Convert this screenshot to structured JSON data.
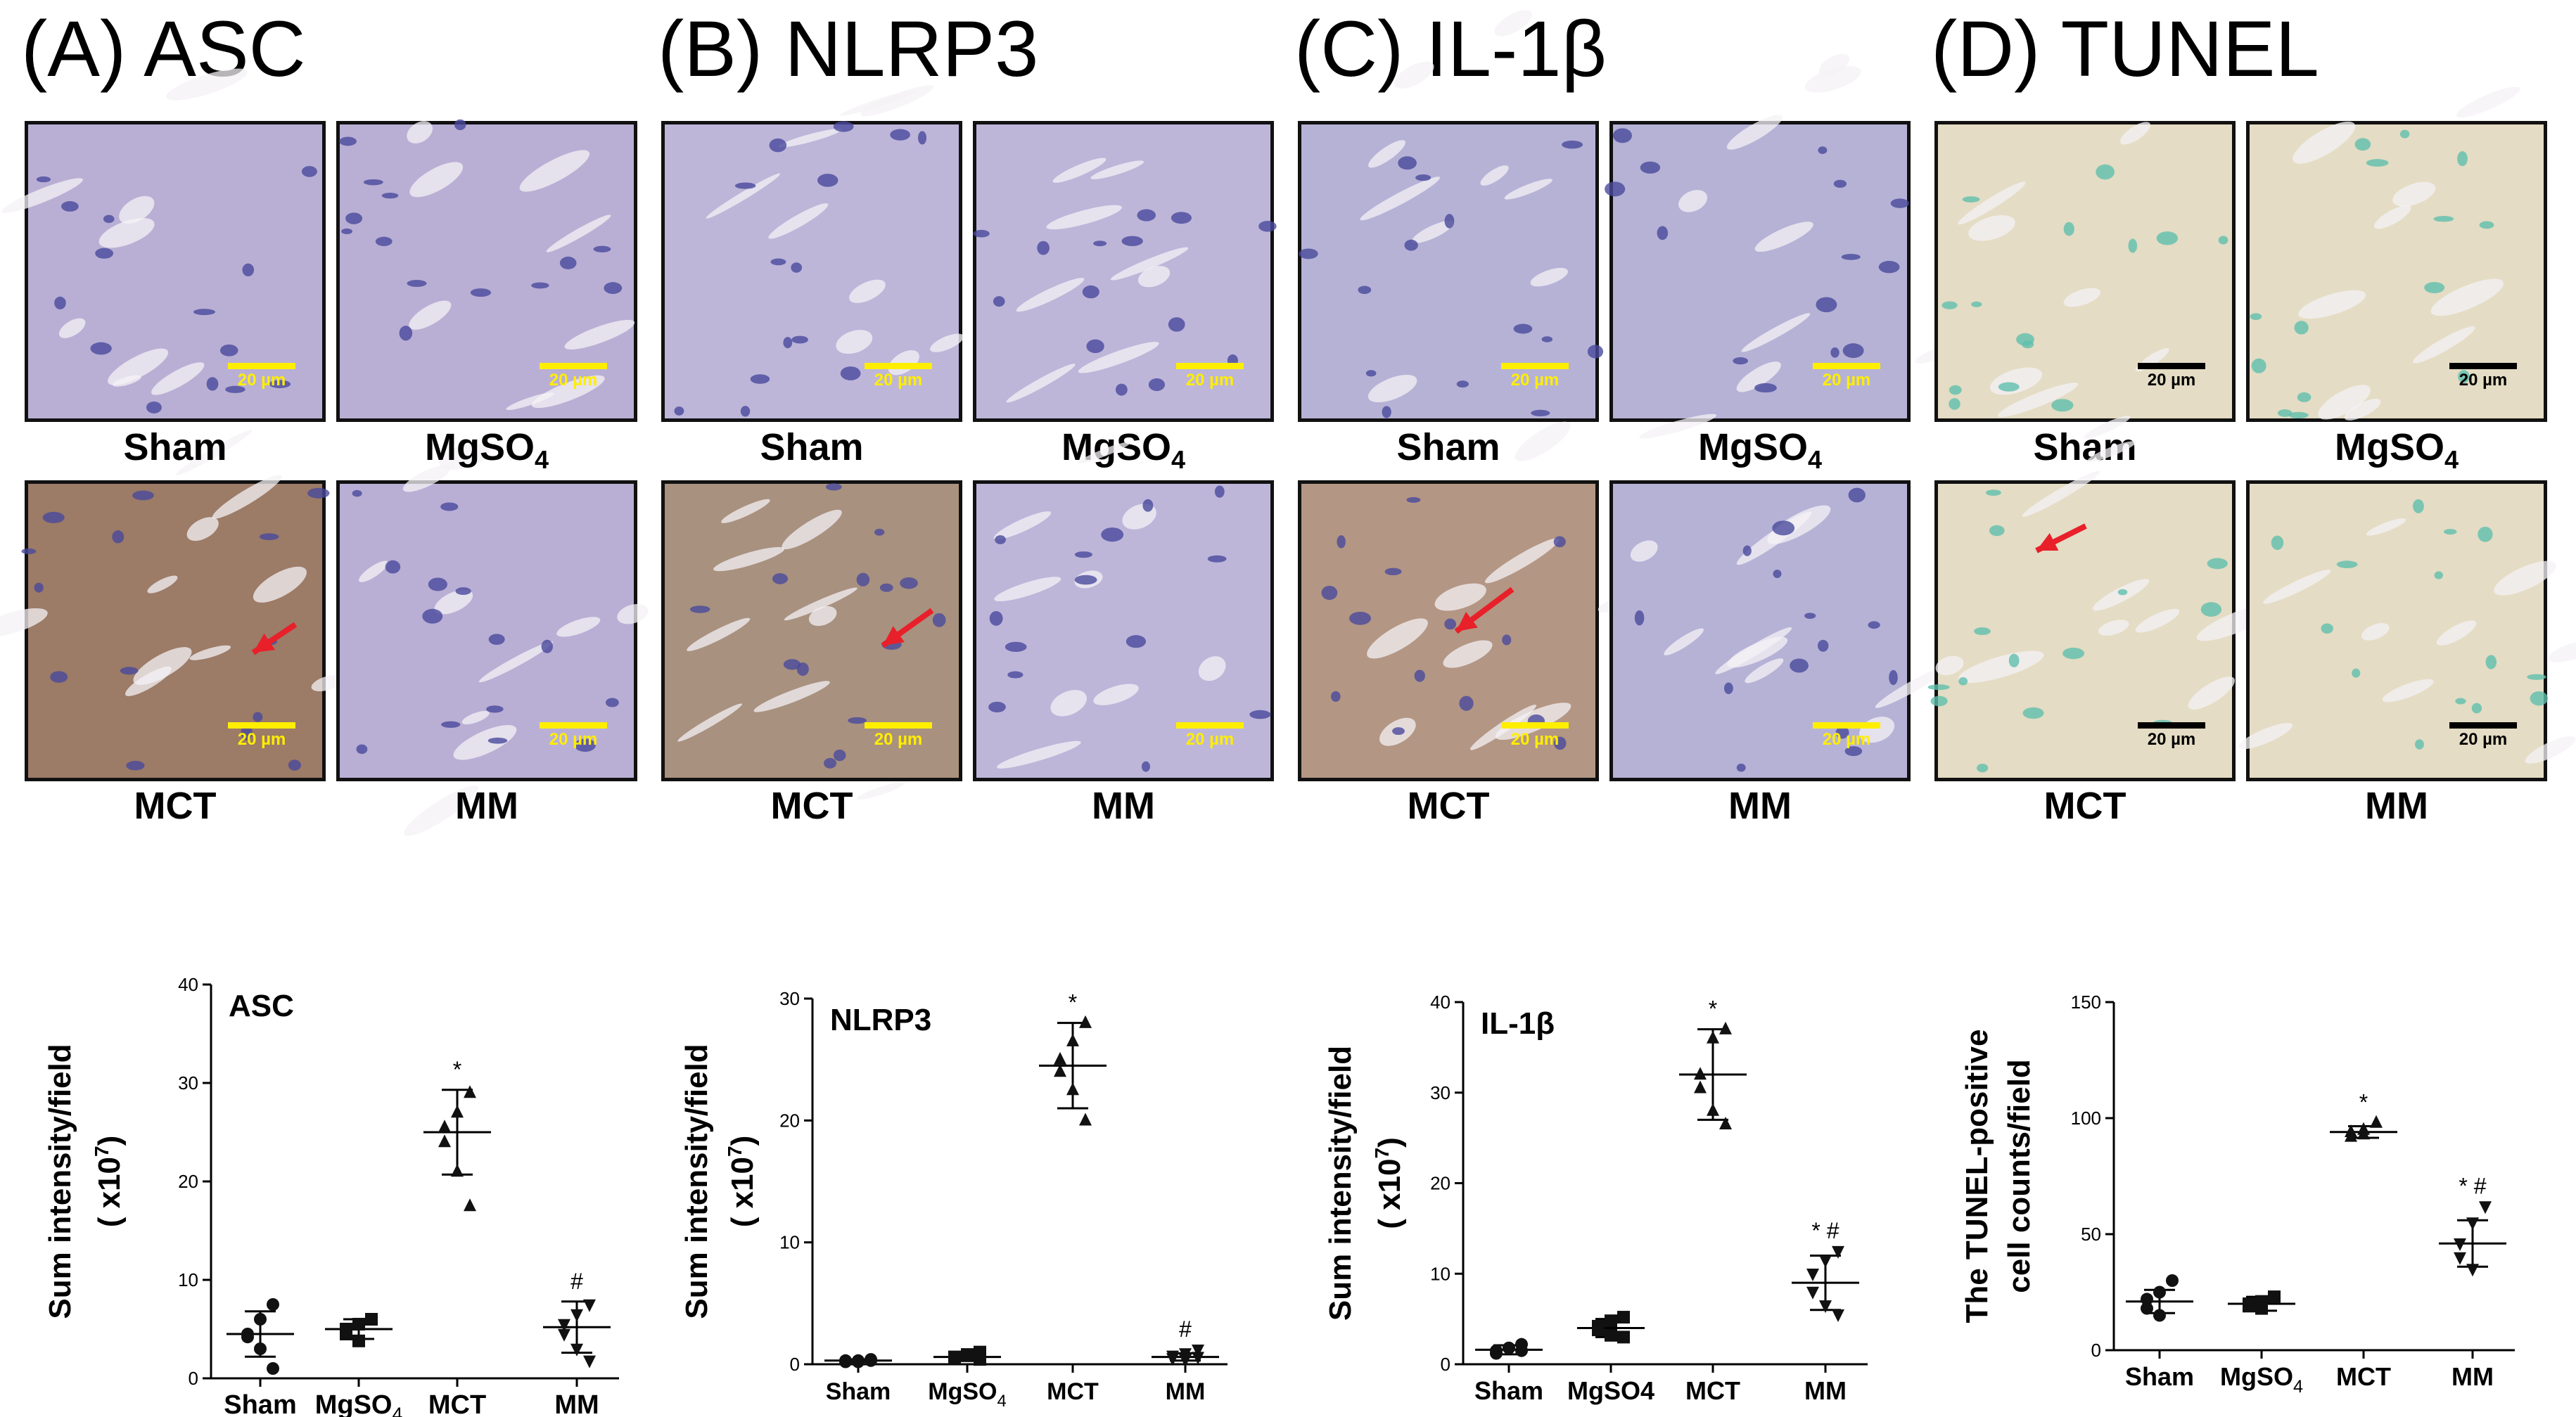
{
  "panels": [
    {
      "title": "(A) ASC",
      "key": "asc",
      "tint": "#b9afd4",
      "cells": [
        "Sham",
        "MgSO4",
        "MCT",
        "MM"
      ],
      "scale_label": "20 µm",
      "scale_color": "#ffee00"
    },
    {
      "title": "(B) NLRP3",
      "key": "nlrp3",
      "tint": "#bdb6d9",
      "cells": [
        "Sham",
        "MgSO4",
        "MCT",
        "MM"
      ],
      "scale_label": "20 µm",
      "scale_color": "#ffee00"
    },
    {
      "title": "(C) IL-1β",
      "key": "il1b",
      "tint": "#b6b2d6",
      "cells": [
        "Sham",
        "MgSO4",
        "MCT",
        "MM"
      ],
      "scale_label": "20 µm",
      "scale_color": "#ffee00"
    },
    {
      "title": "(D) TUNEL",
      "key": "tunel",
      "tint": "#e4dcc4",
      "cells": [
        "Sham",
        "MgSO4",
        "MCT",
        "MM"
      ],
      "scale_label": "20 µm",
      "scale_color": "#000000"
    }
  ],
  "captions": {
    "sham": "Sham",
    "mgso4_base": "MgSO",
    "mgso4_sub": "4",
    "mct": "MCT",
    "mm": "MM"
  },
  "chart_data": [
    {
      "type": "scatter",
      "title": "ASC",
      "ylabel": "Sum intensity/field",
      "ylabel2": "( x10",
      "ylabel2_exp": "7",
      "ylabel2_end": ")",
      "categories": [
        "Sham",
        "MgSO4",
        "MCT",
        "MM"
      ],
      "ylim": [
        0,
        40
      ],
      "yticks": [
        0,
        10,
        20,
        30,
        40
      ],
      "marker": "circle",
      "groups": [
        {
          "points": [
            7.5,
            6.0,
            4.5,
            4.2,
            3.0,
            1.0
          ],
          "mean": 4.5,
          "sd": 2.3,
          "marker": "circle"
        },
        {
          "points": [
            6.0,
            5.5,
            5.0,
            4.5,
            3.8
          ],
          "mean": 5.0,
          "sd": 1.0,
          "marker": "square"
        },
        {
          "points": [
            29.0,
            27.0,
            25.5,
            24.0,
            21.0,
            17.5
          ],
          "mean": 25.0,
          "sd": 4.3,
          "marker": "triangle-up",
          "annotation": "*"
        },
        {
          "points": [
            7.5,
            6.5,
            5.5,
            4.5,
            3.0,
            1.8
          ],
          "mean": 5.2,
          "sd": 2.6,
          "marker": "triangle-down",
          "annotation": "#"
        }
      ]
    },
    {
      "type": "scatter",
      "title": "NLRP3",
      "ylabel": "Sum intensity/field",
      "ylabel2": "( x10",
      "ylabel2_exp": "7",
      "ylabel2_end": ")",
      "categories": [
        "Sham",
        "MgSO4",
        "MCT",
        "MM"
      ],
      "ylim": [
        0,
        30
      ],
      "yticks": [
        0,
        10,
        20,
        30
      ],
      "groups": [
        {
          "points": [
            0.4,
            0.3,
            0.2,
            0.3,
            0.2,
            0.3
          ],
          "mean": 0.3,
          "sd": 0.1,
          "marker": "circle"
        },
        {
          "points": [
            1.0,
            0.8,
            0.6,
            0.5,
            0.7,
            0.4
          ],
          "mean": 0.6,
          "sd": 0.3,
          "marker": "square"
        },
        {
          "points": [
            28.0,
            26.5,
            25.0,
            24.0,
            22.5,
            20.0
          ],
          "mean": 24.5,
          "sd": 3.5,
          "marker": "triangle-up",
          "annotation": "*"
        },
        {
          "points": [
            1.2,
            0.9,
            0.7,
            0.5,
            0.4,
            0.6
          ],
          "mean": 0.6,
          "sd": 0.3,
          "marker": "triangle-down",
          "annotation": "#"
        }
      ]
    },
    {
      "type": "scatter",
      "title": "IL-1β",
      "ylabel": "Sum intensity/field",
      "ylabel2": "( x10",
      "ylabel2_exp": "7",
      "ylabel2_end": ")",
      "categories": [
        "Sham",
        "MgSO4",
        "MCT",
        "MM"
      ],
      "ylim": [
        0,
        40
      ],
      "yticks": [
        0,
        10,
        20,
        30,
        40
      ],
      "groups": [
        {
          "points": [
            2.2,
            1.8,
            1.5,
            1.2,
            1.8,
            1.5
          ],
          "mean": 1.6,
          "sd": 0.5,
          "marker": "circle"
        },
        {
          "points": [
            5.2,
            4.8,
            4.2,
            3.8,
            3.2,
            3.0
          ],
          "mean": 4.0,
          "sd": 1.0,
          "marker": "square"
        },
        {
          "points": [
            37.0,
            36.0,
            32.0,
            30.5,
            28.0,
            26.5
          ],
          "mean": 32.0,
          "sd": 5.0,
          "marker": "triangle-up",
          "annotation": "*"
        },
        {
          "points": [
            12.5,
            11.5,
            10.0,
            8.0,
            6.5,
            5.5
          ],
          "mean": 9.0,
          "sd": 3.0,
          "marker": "triangle-down",
          "annotation": "* #"
        }
      ]
    },
    {
      "type": "scatter",
      "title": "",
      "ylabel": "The TUNEL-positive",
      "ylabel2": "cell counts/field",
      "ylabel2_exp": "",
      "ylabel2_end": "",
      "categories": [
        "Sham",
        "MgSO4",
        "MCT",
        "MM"
      ],
      "ylim": [
        0,
        150
      ],
      "yticks": [
        0,
        50,
        100,
        150
      ],
      "groups": [
        {
          "points": [
            30,
            25,
            22,
            18,
            15
          ],
          "mean": 21,
          "sd": 5,
          "marker": "circle"
        },
        {
          "points": [
            23,
            21,
            20,
            19,
            18
          ],
          "mean": 20,
          "sd": 3,
          "marker": "square"
        },
        {
          "points": [
            98,
            95,
            94,
            92,
            93
          ],
          "mean": 94,
          "sd": 2.5,
          "marker": "triangle-up",
          "annotation": "*"
        },
        {
          "points": [
            62,
            55,
            46,
            40,
            35
          ],
          "mean": 46,
          "sd": 10,
          "marker": "triangle-down",
          "annotation": "* #"
        }
      ]
    }
  ],
  "xlabels": [
    [
      "Sham",
      "MgSO",
      "MCT",
      "MM"
    ],
    [
      "Sham",
      "MgSO",
      "MCT",
      "MM"
    ],
    [
      "Sham",
      "MgSO4",
      "MCT",
      "MM"
    ],
    [
      "Sham",
      "MgSO",
      "MCT",
      "MM"
    ]
  ]
}
